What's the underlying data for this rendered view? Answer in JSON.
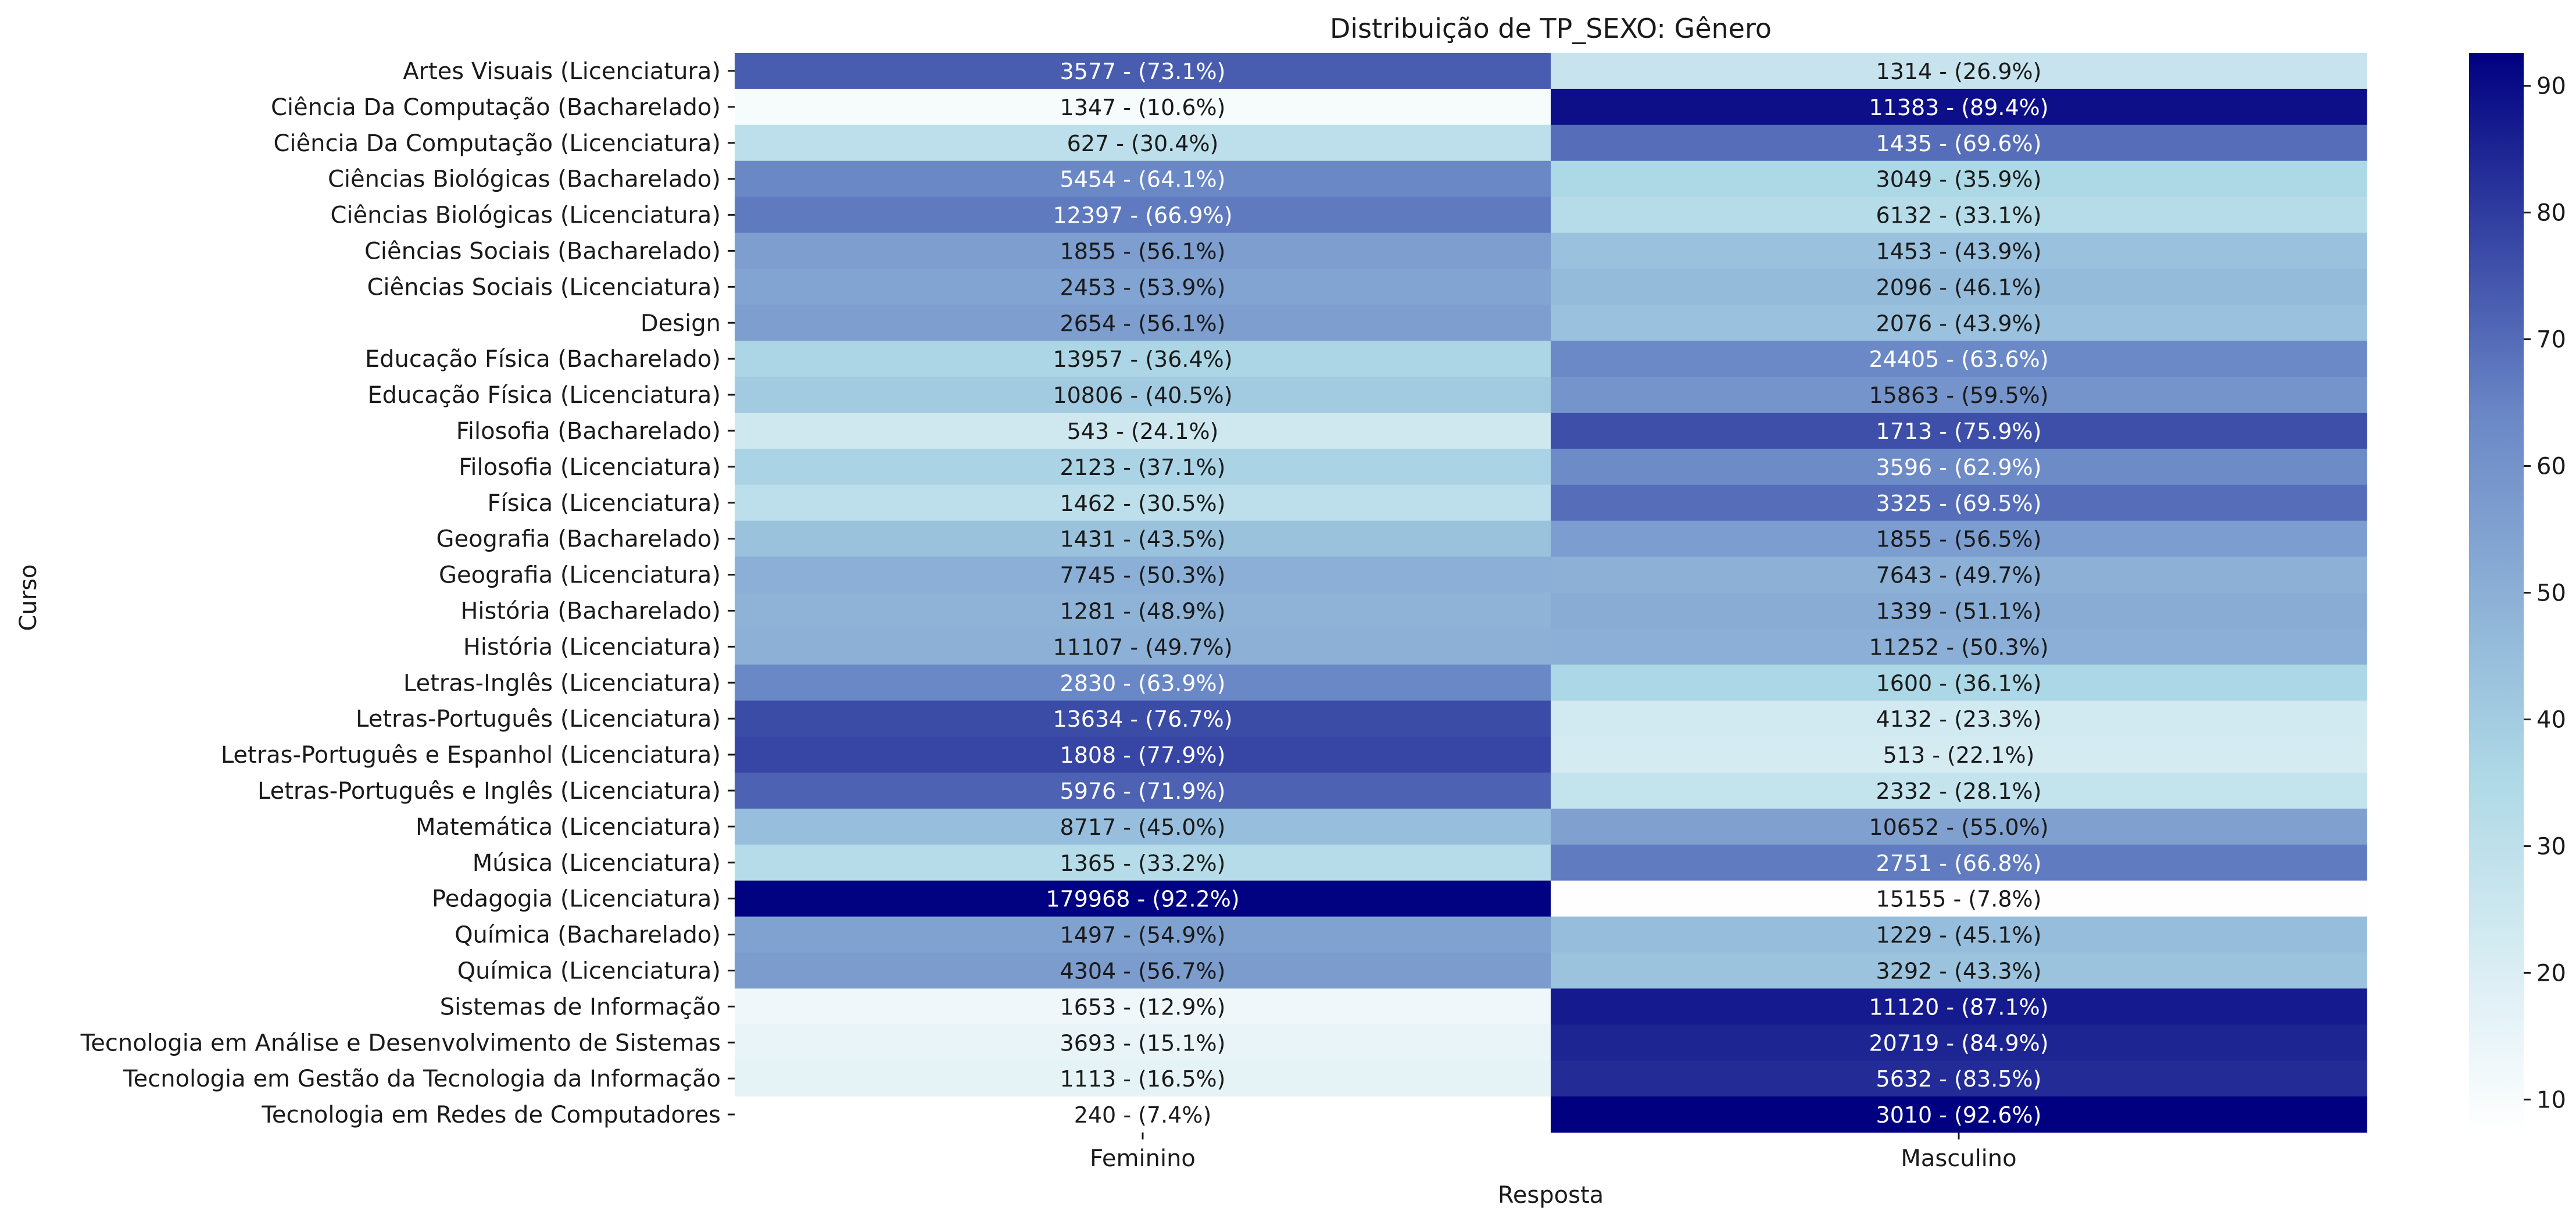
{
  "chart_data": {
    "type": "heatmap",
    "title": "Distribuição de TP_SEXO: Gênero",
    "xlabel": "Resposta",
    "ylabel": "Curso",
    "columns": [
      "Feminino",
      "Masculino"
    ],
    "rows": [
      {
        "label": "Artes Visuais (Licenciatura)",
        "counts": [
          3577,
          1314
        ],
        "percents": [
          73.1,
          26.9
        ]
      },
      {
        "label": "Ciência Da Computação (Bacharelado)",
        "counts": [
          1347,
          11383
        ],
        "percents": [
          10.6,
          89.4
        ]
      },
      {
        "label": "Ciência Da Computação (Licenciatura)",
        "counts": [
          627,
          1435
        ],
        "percents": [
          30.4,
          69.6
        ]
      },
      {
        "label": "Ciências Biológicas (Bacharelado)",
        "counts": [
          5454,
          3049
        ],
        "percents": [
          64.1,
          35.9
        ]
      },
      {
        "label": "Ciências Biológicas (Licenciatura)",
        "counts": [
          12397,
          6132
        ],
        "percents": [
          66.9,
          33.1
        ]
      },
      {
        "label": "Ciências Sociais (Bacharelado)",
        "counts": [
          1855,
          1453
        ],
        "percents": [
          56.1,
          43.9
        ]
      },
      {
        "label": "Ciências Sociais (Licenciatura)",
        "counts": [
          2453,
          2096
        ],
        "percents": [
          53.9,
          46.1
        ]
      },
      {
        "label": "Design",
        "counts": [
          2654,
          2076
        ],
        "percents": [
          56.1,
          43.9
        ]
      },
      {
        "label": "Educação Física (Bacharelado)",
        "counts": [
          13957,
          24405
        ],
        "percents": [
          36.4,
          63.6
        ]
      },
      {
        "label": "Educação Física (Licenciatura)",
        "counts": [
          10806,
          15863
        ],
        "percents": [
          40.5,
          59.5
        ]
      },
      {
        "label": "Filosofia (Bacharelado)",
        "counts": [
          543,
          1713
        ],
        "percents": [
          24.1,
          75.9
        ]
      },
      {
        "label": "Filosofia (Licenciatura)",
        "counts": [
          2123,
          3596
        ],
        "percents": [
          37.1,
          62.9
        ]
      },
      {
        "label": "Física (Licenciatura)",
        "counts": [
          1462,
          3325
        ],
        "percents": [
          30.5,
          69.5
        ]
      },
      {
        "label": "Geografia (Bacharelado)",
        "counts": [
          1431,
          1855
        ],
        "percents": [
          43.5,
          56.5
        ]
      },
      {
        "label": "Geografia (Licenciatura)",
        "counts": [
          7745,
          7643
        ],
        "percents": [
          50.3,
          49.7
        ]
      },
      {
        "label": "História (Bacharelado)",
        "counts": [
          1281,
          1339
        ],
        "percents": [
          48.9,
          51.1
        ]
      },
      {
        "label": "História (Licenciatura)",
        "counts": [
          11107,
          11252
        ],
        "percents": [
          49.7,
          50.3
        ]
      },
      {
        "label": "Letras-Inglês (Licenciatura)",
        "counts": [
          2830,
          1600
        ],
        "percents": [
          63.9,
          36.1
        ]
      },
      {
        "label": "Letras-Português (Licenciatura)",
        "counts": [
          13634,
          4132
        ],
        "percents": [
          76.7,
          23.3
        ]
      },
      {
        "label": "Letras-Português e Espanhol (Licenciatura)",
        "counts": [
          1808,
          513
        ],
        "percents": [
          77.9,
          22.1
        ]
      },
      {
        "label": "Letras-Português e Inglês (Licenciatura)",
        "counts": [
          5976,
          2332
        ],
        "percents": [
          71.9,
          28.1
        ]
      },
      {
        "label": "Matemática (Licenciatura)",
        "counts": [
          8717,
          10652
        ],
        "percents": [
          45.0,
          55.0
        ]
      },
      {
        "label": "Música (Licenciatura)",
        "counts": [
          1365,
          2751
        ],
        "percents": [
          33.2,
          66.8
        ]
      },
      {
        "label": "Pedagogia (Licenciatura)",
        "counts": [
          179968,
          15155
        ],
        "percents": [
          92.2,
          7.8
        ]
      },
      {
        "label": "Química (Bacharelado)",
        "counts": [
          1497,
          1229
        ],
        "percents": [
          54.9,
          45.1
        ]
      },
      {
        "label": "Química (Licenciatura)",
        "counts": [
          4304,
          3292
        ],
        "percents": [
          56.7,
          43.3
        ]
      },
      {
        "label": "Sistemas de Informação",
        "counts": [
          1653,
          11120
        ],
        "percents": [
          12.9,
          87.1
        ]
      },
      {
        "label": "Tecnologia em Análise e Desenvolvimento de Sistemas",
        "counts": [
          3693,
          20719
        ],
        "percents": [
          15.1,
          84.9
        ]
      },
      {
        "label": "Tecnologia em Gestão da Tecnologia da Informação",
        "counts": [
          1113,
          5632
        ],
        "percents": [
          16.5,
          83.5
        ]
      },
      {
        "label": "Tecnologia em Redes de Computadores",
        "counts": [
          240,
          3010
        ],
        "percents": [
          7.4,
          92.6
        ]
      }
    ],
    "colorbar": {
      "range": [
        7.4,
        92.6
      ],
      "ticks": [
        10,
        20,
        30,
        40,
        50,
        60,
        70,
        80,
        90
      ],
      "colors": [
        "#ffffff",
        "#add8e6",
        "#6a87c6",
        "#000080"
      ]
    },
    "grid": false
  }
}
